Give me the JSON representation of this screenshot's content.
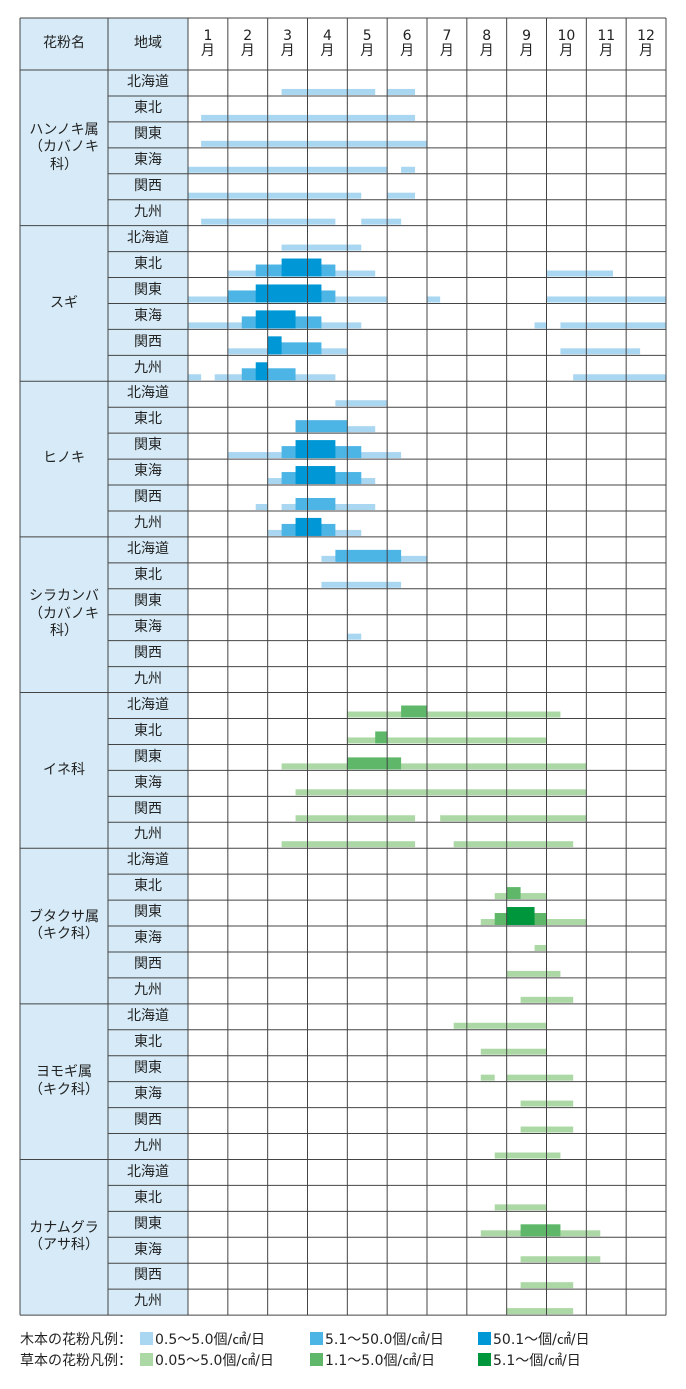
{
  "header": {
    "name": "花粉名",
    "region": "地域",
    "months": [
      "1月",
      "2月",
      "3月",
      "4月",
      "5月",
      "6月",
      "7月",
      "8月",
      "9月",
      "10月",
      "11月",
      "12月"
    ]
  },
  "colors": {
    "wood": [
      "#a9d6f0",
      "#4cb5e5",
      "#0097d6"
    ],
    "grass": [
      "#acd8a6",
      "#5fb86a",
      "#00973c"
    ]
  },
  "legend": {
    "wood": {
      "label": "木本の花粉凡例：",
      "items": [
        "0.5～5.0個/㎠/日",
        "5.1～50.0個/㎠/日",
        "50.1～個/㎠/日"
      ]
    },
    "grass": {
      "label": "草本の花粉凡例：",
      "items": [
        "0.05～5.0個/㎠/日",
        "1.1～5.0個/㎠/日",
        "5.1～個/㎠/日"
      ]
    }
  },
  "groups": [
    {
      "name": "ハンノキ属\n（カバノキ科）",
      "kind": "wood",
      "rows": [
        {
          "region": "北海道",
          "bars": [
            [
              2.35,
              4.7,
              1
            ],
            [
              5.0,
              5.7,
              1
            ]
          ]
        },
        {
          "region": "東北",
          "bars": [
            [
              0.33,
              5.7,
              1
            ]
          ]
        },
        {
          "region": "関東",
          "bars": [
            [
              0.33,
              6.0,
              1
            ]
          ]
        },
        {
          "region": "東海",
          "bars": [
            [
              0,
              5.0,
              1
            ],
            [
              5.35,
              5.7,
              1
            ]
          ]
        },
        {
          "region": "関西",
          "bars": [
            [
              0,
              4.35,
              1
            ],
            [
              5.0,
              5.7,
              1
            ]
          ]
        },
        {
          "region": "九州",
          "bars": [
            [
              0.33,
              3.7,
              1
            ],
            [
              4.35,
              5.35,
              1
            ]
          ]
        }
      ]
    },
    {
      "name": "スギ",
      "kind": "wood",
      "rows": [
        {
          "region": "北海道",
          "bars": [
            [
              2.35,
              4.35,
              1
            ]
          ]
        },
        {
          "region": "東北",
          "bars": [
            [
              1.0,
              4.7,
              1
            ],
            [
              1.7,
              3.7,
              2
            ],
            [
              2.35,
              3.35,
              3
            ],
            [
              9.0,
              10.67,
              1
            ]
          ]
        },
        {
          "region": "関東",
          "bars": [
            [
              0,
              5.0,
              1
            ],
            [
              1.0,
              3.7,
              2
            ],
            [
              1.7,
              3.35,
              3
            ],
            [
              6.0,
              6.33,
              1
            ],
            [
              9.0,
              12,
              1
            ]
          ]
        },
        {
          "region": "東海",
          "bars": [
            [
              0,
              4.35,
              1
            ],
            [
              1.35,
              3.35,
              2
            ],
            [
              1.7,
              2.7,
              3
            ],
            [
              8.7,
              9.0,
              1
            ],
            [
              9.35,
              12,
              1
            ]
          ]
        },
        {
          "region": "関西",
          "bars": [
            [
              1.0,
              4.0,
              1
            ],
            [
              2.0,
              3.35,
              2
            ],
            [
              2.0,
              2.35,
              3
            ],
            [
              9.35,
              11.35,
              1
            ]
          ]
        },
        {
          "region": "九州",
          "bars": [
            [
              0,
              0.33,
              1
            ],
            [
              0.67,
              3.7,
              1
            ],
            [
              1.35,
              2.7,
              2
            ],
            [
              1.7,
              2.0,
              3
            ],
            [
              9.67,
              12,
              1
            ]
          ]
        }
      ]
    },
    {
      "name": "ヒノキ",
      "kind": "wood",
      "rows": [
        {
          "region": "北海道",
          "bars": [
            [
              3.7,
              5.0,
              1
            ]
          ]
        },
        {
          "region": "東北",
          "bars": [
            [
              2.7,
              4.7,
              1
            ],
            [
              2.7,
              4.0,
              2
            ]
          ]
        },
        {
          "region": "関東",
          "bars": [
            [
              1.0,
              5.35,
              1
            ],
            [
              2.35,
              4.35,
              2
            ],
            [
              2.7,
              3.7,
              3
            ]
          ]
        },
        {
          "region": "東海",
          "bars": [
            [
              2.0,
              4.7,
              1
            ],
            [
              2.35,
              4.35,
              2
            ],
            [
              2.7,
              3.7,
              3
            ]
          ]
        },
        {
          "region": "関西",
          "bars": [
            [
              1.7,
              2.0,
              1
            ],
            [
              2.35,
              4.7,
              1
            ],
            [
              2.7,
              3.7,
              2
            ]
          ]
        },
        {
          "region": "九州",
          "bars": [
            [
              2.0,
              4.35,
              1
            ],
            [
              2.35,
              3.7,
              2
            ],
            [
              2.7,
              3.35,
              3
            ]
          ]
        }
      ]
    },
    {
      "name": "シラカンバ\n（カバノキ科）",
      "kind": "wood",
      "rows": [
        {
          "region": "北海道",
          "bars": [
            [
              3.35,
              6.0,
              1
            ],
            [
              3.7,
              5.35,
              2
            ]
          ]
        },
        {
          "region": "東北",
          "bars": [
            [
              3.35,
              5.35,
              1
            ]
          ]
        },
        {
          "region": "関東",
          "bars": []
        },
        {
          "region": "東海",
          "bars": [
            [
              4.0,
              4.35,
              1
            ]
          ]
        },
        {
          "region": "関西",
          "bars": []
        },
        {
          "region": "九州",
          "bars": []
        }
      ]
    },
    {
      "name": "イネ科",
      "kind": "grass",
      "rows": [
        {
          "region": "北海道",
          "bars": [
            [
              4.0,
              9.35,
              1
            ],
            [
              5.35,
              6.0,
              2
            ]
          ]
        },
        {
          "region": "東北",
          "bars": [
            [
              4.0,
              9.0,
              1
            ],
            [
              4.7,
              5.0,
              2
            ]
          ]
        },
        {
          "region": "関東",
          "bars": [
            [
              2.35,
              10.0,
              1
            ],
            [
              4.0,
              5.35,
              2
            ]
          ]
        },
        {
          "region": "東海",
          "bars": [
            [
              2.7,
              10.0,
              1
            ]
          ]
        },
        {
          "region": "関西",
          "bars": [
            [
              2.7,
              5.7,
              1
            ],
            [
              6.33,
              10.0,
              1
            ]
          ]
        },
        {
          "region": "九州",
          "bars": [
            [
              2.35,
              5.7,
              1
            ],
            [
              6.67,
              9.67,
              1
            ]
          ]
        }
      ]
    },
    {
      "name": "ブタクサ属\n（キク科）",
      "kind": "grass",
      "rows": [
        {
          "region": "北海道",
          "bars": []
        },
        {
          "region": "東北",
          "bars": [
            [
              7.7,
              9.0,
              1
            ],
            [
              8.0,
              8.35,
              2
            ]
          ]
        },
        {
          "region": "関東",
          "bars": [
            [
              7.35,
              10.0,
              1
            ],
            [
              7.7,
              9.0,
              2
            ],
            [
              8.0,
              8.7,
              3
            ]
          ]
        },
        {
          "region": "東海",
          "bars": [
            [
              8.7,
              9.0,
              1
            ]
          ]
        },
        {
          "region": "関西",
          "bars": [
            [
              8.0,
              9.35,
              1
            ]
          ]
        },
        {
          "region": "九州",
          "bars": [
            [
              8.35,
              9.67,
              1
            ]
          ]
        }
      ]
    },
    {
      "name": "ヨモギ属\n（キク科）",
      "kind": "grass",
      "rows": [
        {
          "region": "北海道",
          "bars": [
            [
              6.67,
              9.0,
              1
            ]
          ]
        },
        {
          "region": "東北",
          "bars": [
            [
              7.35,
              9.0,
              1
            ]
          ]
        },
        {
          "region": "関東",
          "bars": [
            [
              7.35,
              7.7,
              1
            ],
            [
              8.0,
              9.67,
              1
            ]
          ]
        },
        {
          "region": "東海",
          "bars": [
            [
              8.35,
              9.67,
              1
            ]
          ]
        },
        {
          "region": "関西",
          "bars": [
            [
              8.35,
              9.67,
              1
            ]
          ]
        },
        {
          "region": "九州",
          "bars": [
            [
              7.7,
              9.35,
              1
            ]
          ]
        }
      ]
    },
    {
      "name": "カナムグラ\n（アサ科）",
      "kind": "grass",
      "rows": [
        {
          "region": "北海道",
          "bars": []
        },
        {
          "region": "東北",
          "bars": [
            [
              7.7,
              9.0,
              1
            ]
          ]
        },
        {
          "region": "関東",
          "bars": [
            [
              7.35,
              10.35,
              1
            ],
            [
              8.35,
              9.35,
              2
            ]
          ]
        },
        {
          "region": "東海",
          "bars": [
            [
              8.35,
              10.35,
              1
            ]
          ]
        },
        {
          "region": "関西",
          "bars": [
            [
              8.35,
              9.67,
              1
            ]
          ]
        },
        {
          "region": "九州",
          "bars": [
            [
              8.0,
              9.67,
              1
            ]
          ]
        }
      ]
    }
  ]
}
